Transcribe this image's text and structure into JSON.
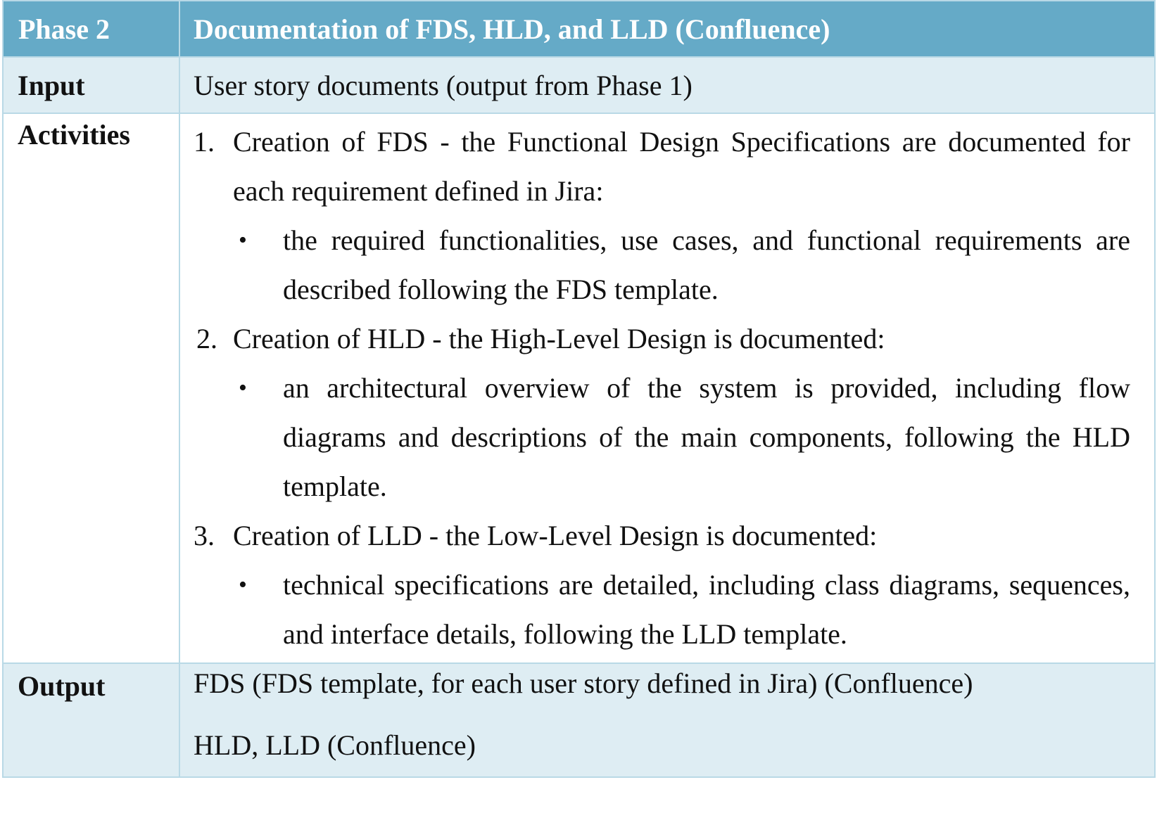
{
  "header": {
    "phase": "Phase 2",
    "title": "Documentation of FDS, HLD, and LLD (Confluence)"
  },
  "input": {
    "label": "Input",
    "value": "User story documents (output from Phase 1)"
  },
  "activities": {
    "label": "Activities",
    "items": [
      {
        "number": "1.",
        "text": "Creation of FDS - the Functional Design Specifications are documented for each requirement defined in Jira:",
        "bullet": "•",
        "sub": "the required functionalities, use cases, and functional requirements are described following the FDS template."
      },
      {
        "number": "2.",
        "text": "Creation of HLD - the High-Level Design is documented:",
        "bullet": "•",
        "sub": "an architectural overview of the system is provided, including flow diagrams and descriptions of the main components, following the HLD template."
      },
      {
        "number": "3.",
        "text": "Creation of LLD - the Low-Level Design is documented:",
        "bullet": "•",
        "sub": "technical specifications are detailed, including class diagrams, sequences, and interface details, following the LLD template."
      }
    ]
  },
  "output": {
    "label": "Output",
    "lines": [
      "FDS (FDS template, for each user story defined in Jira) (Confluence)",
      "HLD, LLD (Confluence)"
    ]
  }
}
